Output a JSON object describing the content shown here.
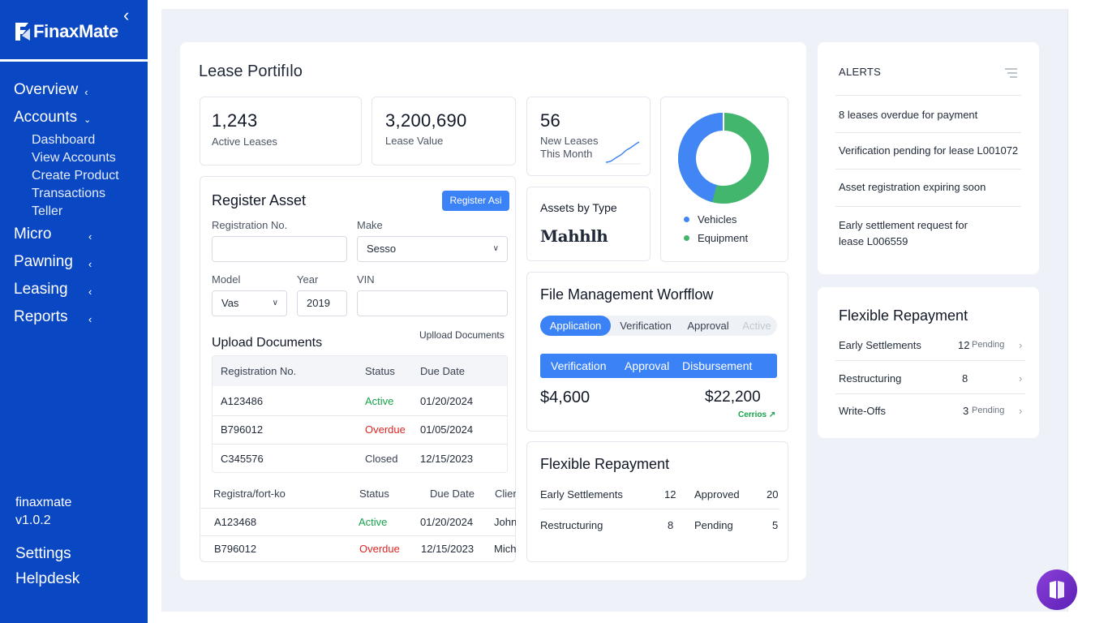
{
  "sidebar": {
    "app_name": "FinaxMate",
    "nav": [
      {
        "label": "Overview"
      },
      {
        "label": "Accounts",
        "children": [
          "Dashboard",
          "View Accounts",
          "Create Product",
          "Transactions",
          "Teller"
        ]
      },
      {
        "label": "Micro"
      },
      {
        "label": "Pawning"
      },
      {
        "label": "Leasing"
      },
      {
        "label": "Reports"
      }
    ],
    "footer": {
      "brand": "finaxmate",
      "version": "v1.0.2",
      "settings": "Settings",
      "helpdesk": "Helpdesk"
    }
  },
  "portfolio": {
    "title": "Lease Portifılo",
    "stats": [
      {
        "value": "1,243",
        "label": "Active Leases"
      },
      {
        "value": "3,200,690",
        "label": "Lease Value"
      },
      {
        "value": "56",
        "label_line1": "New Leases",
        "label_line2": "This Month"
      }
    ],
    "assets_by_type": {
      "title": "Assets by Type",
      "logo_text": "Mahhlh"
    },
    "donut": {
      "legend": [
        {
          "label": "Vehicles",
          "color": "#4285f4",
          "share": 0.46
        },
        {
          "label": "Equipment",
          "color": "#43b66e",
          "share": 0.54
        }
      ]
    }
  },
  "register_asset": {
    "title": "Register Asset",
    "button": "Register Asi",
    "fields": {
      "registration_no": {
        "label": "Registration No.",
        "value": ""
      },
      "make": {
        "label": "Make",
        "value": "Sesso"
      },
      "model": {
        "label": "Model",
        "value": "Vas"
      },
      "year": {
        "label": "Year",
        "value": "2019"
      },
      "vin": {
        "label": "VIN",
        "value": ""
      }
    },
    "upload": {
      "title": "Upload Documents",
      "link": "Uplload Documents"
    },
    "table1": {
      "headers": [
        "Registration No.",
        "Status",
        "Due Date"
      ],
      "rows": [
        {
          "reg": "A123486",
          "status": "Active",
          "due": "01/20/2024"
        },
        {
          "reg": "B796012",
          "status": "Overdue",
          "due": "01/05/2024"
        },
        {
          "reg": "C345576",
          "status": "Closed",
          "due": "12/15/2023"
        }
      ]
    },
    "table2": {
      "headers": [
        "Registra/fort-ko",
        "Status",
        "Due Date",
        "Clien"
      ],
      "rows": [
        {
          "reg": "A123468",
          "status": "Active",
          "due": "01/20/2024",
          "client": "John"
        },
        {
          "reg": "B796012",
          "status": "Overdue",
          "due": "12/15/2023",
          "client": "Mich"
        }
      ]
    }
  },
  "workflow": {
    "title": "File Management Worfflow",
    "pills": [
      "Application",
      "Verification",
      "Approval",
      "Active"
    ],
    "steps": [
      "Verification",
      "Approval",
      "Disbursement"
    ],
    "amount_left": "$4,600",
    "amount_right": "$22,200",
    "amount_right_sub": "Cerrios"
  },
  "flex_mid": {
    "title": "Flexible Repayment",
    "rows": [
      {
        "label": "Early Settlements",
        "count": "12",
        "label2": "Approved",
        "count2": "20"
      },
      {
        "label": "Restructuring",
        "count": "8",
        "label2": "Pending",
        "count2": "5"
      }
    ]
  },
  "alerts": {
    "title": "ALERTS",
    "items": [
      "8 leases overdue for payment",
      "Verification pending for lease L001072",
      "Asset registration expiring soon",
      "Early settlement request for",
      "lease L006559"
    ]
  },
  "flex_right": {
    "title": "Flexible Repayment",
    "rows": [
      {
        "label": "Early Settlements",
        "count": "12",
        "badge": "Pending"
      },
      {
        "label": "Restructuring",
        "count": "8",
        "badge": ""
      },
      {
        "label": "Write-Offs",
        "count": "3",
        "badge": "Pending"
      }
    ]
  }
}
